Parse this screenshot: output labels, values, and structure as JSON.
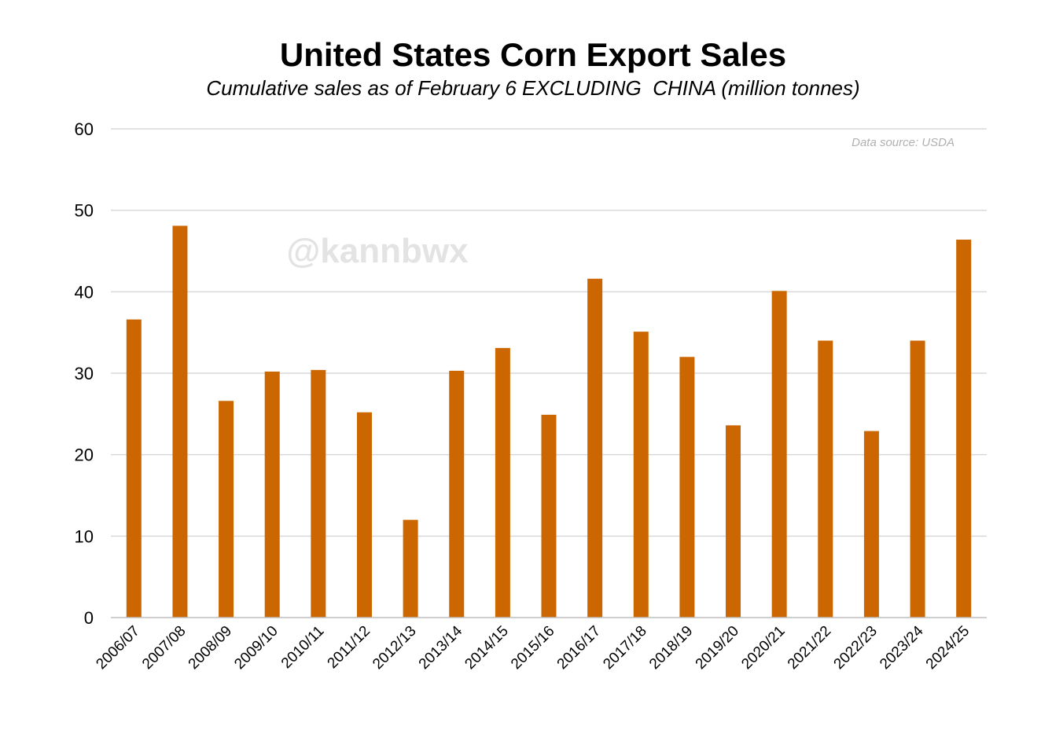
{
  "chart_data": {
    "type": "bar",
    "title": "United States Corn Export Sales",
    "subtitle": "Cumulative sales as of February 6 EXCLUDING  CHINA (million tonnes)",
    "xlabel": "",
    "ylabel": "",
    "ylim": [
      0,
      60
    ],
    "yticks": [
      "0",
      "10",
      "20",
      "30",
      "40",
      "50",
      "60"
    ],
    "grid": true,
    "categories": [
      "2006/07",
      "2007/08",
      "2008/09",
      "2009/10",
      "2010/11",
      "2011/12",
      "2012/13",
      "2013/14",
      "2014/15",
      "2015/16",
      "2016/17",
      "2017/18",
      "2018/19",
      "2019/20",
      "2020/21",
      "2021/22",
      "2022/23",
      "2023/24",
      "2024/25"
    ],
    "series": [
      {
        "name": "Export sales excluding China",
        "color": "#cc6600",
        "values": [
          36.6,
          48.1,
          26.6,
          30.2,
          30.4,
          25.2,
          12.0,
          30.3,
          33.1,
          24.9,
          41.6,
          35.1,
          32.0,
          23.6,
          40.1,
          34.0,
          22.9,
          34.0,
          46.4
        ]
      }
    ],
    "annotations": {
      "source": "Data source: USDA",
      "watermark": "@kannbwx"
    },
    "colors": {
      "bar": "#cc6600",
      "grid": "#d9d9d9",
      "axis": "#bfbfbf",
      "source": "#b0b0b0",
      "watermark": "#e3e3e3"
    }
  }
}
